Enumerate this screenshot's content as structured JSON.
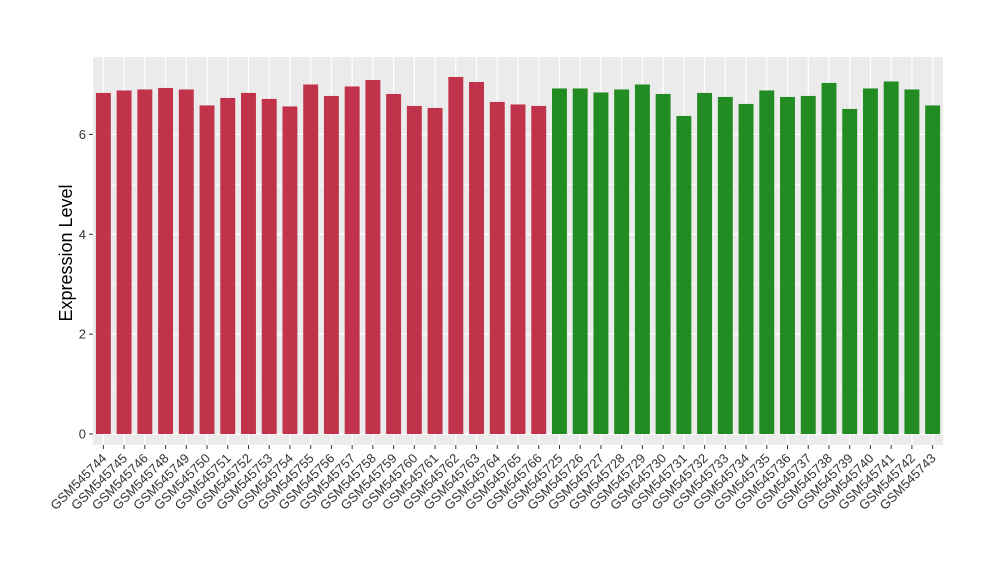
{
  "chart_data": {
    "type": "bar",
    "title": "",
    "xlabel": "",
    "ylabel": "Expression Level",
    "ylim": [
      -0.22,
      7.55
    ],
    "yticks": [
      0,
      2,
      4,
      6
    ],
    "grid": true,
    "legend": "none",
    "background": "#EBEBEB",
    "colors": {
      "group1": "#C1334B",
      "group2": "#228B22"
    },
    "categories": [
      "GSM545744",
      "GSM545745",
      "GSM545746",
      "GSM545748",
      "GSM545749",
      "GSM545750",
      "GSM545751",
      "GSM545752",
      "GSM545753",
      "GSM545754",
      "GSM545755",
      "GSM545756",
      "GSM545757",
      "GSM545758",
      "GSM545759",
      "GSM545760",
      "GSM545761",
      "GSM545762",
      "GSM545763",
      "GSM545764",
      "GSM545765",
      "GSM545766",
      "GSM545725",
      "GSM545726",
      "GSM545727",
      "GSM545728",
      "GSM545729",
      "GSM545730",
      "GSM545731",
      "GSM545732",
      "GSM545733",
      "GSM545734",
      "GSM545735",
      "GSM545736",
      "GSM545737",
      "GSM545738",
      "GSM545739",
      "GSM545740",
      "GSM545741",
      "GSM545742",
      "GSM545743"
    ],
    "values": [
      6.83,
      6.88,
      6.9,
      6.93,
      6.9,
      6.58,
      6.73,
      6.83,
      6.71,
      6.56,
      7.0,
      6.77,
      6.96,
      7.09,
      6.81,
      6.57,
      6.53,
      7.15,
      7.05,
      6.65,
      6.6,
      6.57,
      6.92,
      6.92,
      6.84,
      6.9,
      7.0,
      6.81,
      6.37,
      6.83,
      6.75,
      6.61,
      6.88,
      6.75,
      6.77,
      7.03,
      6.51,
      6.92,
      7.06,
      6.9,
      6.58
    ],
    "groups": [
      1,
      1,
      1,
      1,
      1,
      1,
      1,
      1,
      1,
      1,
      1,
      1,
      1,
      1,
      1,
      1,
      1,
      1,
      1,
      1,
      1,
      1,
      2,
      2,
      2,
      2,
      2,
      2,
      2,
      2,
      2,
      2,
      2,
      2,
      2,
      2,
      2,
      2,
      2,
      2,
      2
    ]
  }
}
